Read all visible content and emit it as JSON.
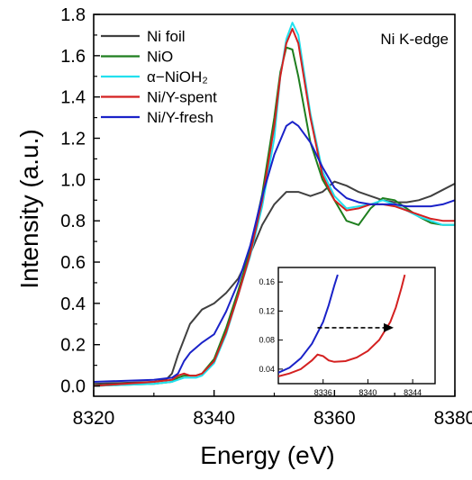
{
  "chart_data": {
    "type": "line",
    "xlabel": "Energy (eV)",
    "ylabel": "Intensity (a.u.)",
    "xlim": [
      8320,
      8380
    ],
    "ylim": [
      -0.05,
      1.8
    ],
    "xticks": [
      "8320",
      "8340",
      "8360",
      "8380"
    ],
    "yticks": [
      "0.0",
      "0.2",
      "0.4",
      "0.6",
      "0.8",
      "1.0",
      "1.2",
      "1.4",
      "1.6",
      "1.8"
    ],
    "annotation": "Ni K-edge",
    "legend_position": "top-left",
    "series": [
      {
        "name": "Ni foil",
        "color": "#404040",
        "x": [
          8320,
          8330,
          8332,
          8333,
          8334,
          8336,
          8338,
          8340,
          8342,
          8344,
          8346,
          8348,
          8350,
          8352,
          8354,
          8356,
          8358,
          8360,
          8362,
          8364,
          8366,
          8368,
          8370,
          8372,
          8374,
          8376,
          8378,
          8380
        ],
        "values": [
          0.01,
          0.02,
          0.03,
          0.06,
          0.15,
          0.3,
          0.37,
          0.4,
          0.45,
          0.52,
          0.64,
          0.78,
          0.88,
          0.94,
          0.94,
          0.92,
          0.94,
          0.99,
          0.97,
          0.94,
          0.92,
          0.9,
          0.89,
          0.89,
          0.9,
          0.92,
          0.95,
          0.98
        ]
      },
      {
        "name": "NiO",
        "color": "#1e7e1e",
        "x": [
          8320,
          8330,
          8333,
          8334,
          8335,
          8336,
          8337,
          8338,
          8340,
          8342,
          8344,
          8346,
          8348,
          8350,
          8351,
          8352,
          8353,
          8354,
          8356,
          8358,
          8360,
          8362,
          8364,
          8366,
          8368,
          8370,
          8372,
          8374,
          8376,
          8378,
          8380
        ],
        "values": [
          0.0,
          0.01,
          0.02,
          0.04,
          0.05,
          0.05,
          0.05,
          0.06,
          0.13,
          0.28,
          0.46,
          0.66,
          0.93,
          1.3,
          1.52,
          1.64,
          1.63,
          1.5,
          1.18,
          1.0,
          0.9,
          0.8,
          0.78,
          0.86,
          0.91,
          0.9,
          0.86,
          0.82,
          0.79,
          0.78,
          0.78
        ]
      },
      {
        "name": "α−NiOH₂",
        "color": "#22e0ee",
        "x": [
          8320,
          8330,
          8333,
          8334,
          8335,
          8336,
          8337,
          8338,
          8340,
          8342,
          8344,
          8346,
          8348,
          8350,
          8351,
          8352,
          8353,
          8354,
          8356,
          8358,
          8360,
          8362,
          8364,
          8366,
          8368,
          8370,
          8372,
          8374,
          8376,
          8378,
          8380
        ],
        "values": [
          0.0,
          0.01,
          0.02,
          0.03,
          0.04,
          0.04,
          0.04,
          0.05,
          0.11,
          0.25,
          0.44,
          0.63,
          0.87,
          1.2,
          1.5,
          1.68,
          1.76,
          1.7,
          1.32,
          1.04,
          0.92,
          0.86,
          0.87,
          0.88,
          0.9,
          0.88,
          0.85,
          0.82,
          0.8,
          0.78,
          0.78
        ]
      },
      {
        "name": "Ni/Y-spent",
        "color": "#d42020",
        "x": [
          8320,
          8330,
          8333,
          8334,
          8335,
          8336,
          8337,
          8338,
          8340,
          8342,
          8344,
          8346,
          8348,
          8350,
          8351,
          8352,
          8353,
          8354,
          8356,
          8358,
          8360,
          8362,
          8364,
          8366,
          8368,
          8370,
          8372,
          8374,
          8376,
          8378,
          8380
        ],
        "values": [
          0.0,
          0.02,
          0.03,
          0.05,
          0.06,
          0.05,
          0.05,
          0.06,
          0.12,
          0.26,
          0.44,
          0.64,
          0.9,
          1.26,
          1.5,
          1.66,
          1.73,
          1.66,
          1.3,
          1.02,
          0.9,
          0.85,
          0.86,
          0.88,
          0.88,
          0.87,
          0.85,
          0.83,
          0.81,
          0.8,
          0.8
        ]
      },
      {
        "name": "Ni/Y-fresh",
        "color": "#1a22c8",
        "x": [
          8320,
          8330,
          8333,
          8334,
          8335,
          8336,
          8338,
          8340,
          8342,
          8344,
          8346,
          8348,
          8350,
          8352,
          8353,
          8354,
          8356,
          8358,
          8360,
          8362,
          8364,
          8366,
          8368,
          8370,
          8372,
          8374,
          8376,
          8378,
          8380
        ],
        "values": [
          0.02,
          0.03,
          0.04,
          0.06,
          0.12,
          0.16,
          0.21,
          0.25,
          0.36,
          0.5,
          0.68,
          0.92,
          1.12,
          1.26,
          1.28,
          1.26,
          1.18,
          1.06,
          0.96,
          0.91,
          0.89,
          0.88,
          0.88,
          0.88,
          0.87,
          0.87,
          0.87,
          0.88,
          0.9
        ]
      }
    ],
    "inset": {
      "xlim": [
        8332,
        8346
      ],
      "ylim": [
        0.02,
        0.18
      ],
      "xticks": [
        "8336",
        "8340",
        "8344"
      ],
      "yticks": [
        "0.04",
        "0.08",
        "0.12",
        "0.16"
      ],
      "series": [
        {
          "name": "Ni/Y-fresh",
          "color": "#1a22c8",
          "x": [
            8332,
            8333,
            8334,
            8335,
            8336,
            8336.5,
            8337,
            8337.3
          ],
          "values": [
            0.035,
            0.042,
            0.055,
            0.075,
            0.105,
            0.128,
            0.155,
            0.17
          ]
        },
        {
          "name": "Ni/Y-spent",
          "color": "#d42020",
          "x": [
            8332,
            8333,
            8334,
            8335,
            8335.5,
            8336,
            8336.5,
            8337,
            8338,
            8339,
            8340,
            8341,
            8342,
            8342.5,
            8343,
            8343.3
          ],
          "values": [
            0.03,
            0.034,
            0.04,
            0.052,
            0.06,
            0.058,
            0.052,
            0.05,
            0.051,
            0.056,
            0.065,
            0.08,
            0.105,
            0.125,
            0.152,
            0.17
          ]
        }
      ],
      "arrow": {
        "from": [
          8335.5,
          0.097
        ],
        "to": [
          8342.3,
          0.097
        ]
      }
    }
  }
}
